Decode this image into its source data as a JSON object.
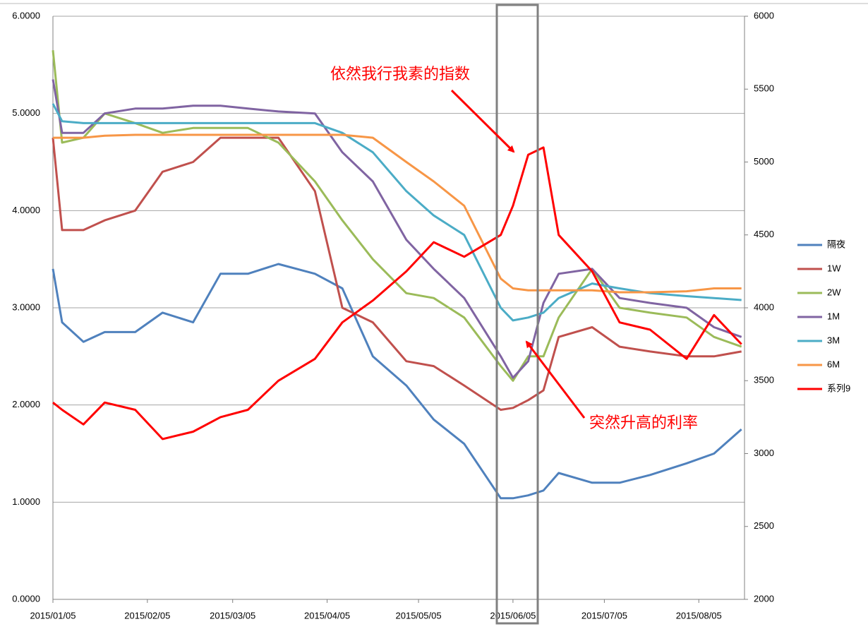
{
  "chart_data": {
    "type": "line",
    "x": [
      "2015/01/05",
      "2015/01/08",
      "2015/01/15",
      "2015/01/22",
      "2015/02/01",
      "2015/02/10",
      "2015/02/20",
      "2015/03/01",
      "2015/03/10",
      "2015/03/20",
      "2015/04/01",
      "2015/04/10",
      "2015/04/20",
      "2015/05/01",
      "2015/05/10",
      "2015/05/20",
      "2015/06/01",
      "2015/06/05",
      "2015/06/10",
      "2015/06/15",
      "2015/06/20",
      "2015/07/01",
      "2015/07/10",
      "2015/07/20",
      "2015/08/01",
      "2015/08/10",
      "2015/08/19"
    ],
    "xlim": [
      "2015/01/05",
      "2015/08/20"
    ],
    "xticks": [
      "2015/01/05",
      "2015/02/05",
      "2015/03/05",
      "2015/04/05",
      "2015/05/05",
      "2015/06/05",
      "2015/07/05",
      "2015/08/05"
    ],
    "ylim": [
      0,
      6
    ],
    "yticks": [
      {
        "value": 0,
        "label": "0.0000"
      },
      {
        "value": 1,
        "label": "1.0000"
      },
      {
        "value": 2,
        "label": "2.0000"
      },
      {
        "value": 3,
        "label": "3.0000"
      },
      {
        "value": 4,
        "label": "4.0000"
      },
      {
        "value": 5,
        "label": "5.0000"
      },
      {
        "value": 6,
        "label": "6.0000"
      }
    ],
    "y2lim": [
      2000,
      6000
    ],
    "y2ticks": [
      2000,
      2500,
      3000,
      3500,
      4000,
      4500,
      5000,
      5500,
      6000
    ],
    "grid": true,
    "legend": "right",
    "series": [
      {
        "name": "隔夜",
        "color": "#4f81bd",
        "values": [
          3.4,
          2.85,
          2.65,
          2.75,
          2.75,
          2.95,
          2.85,
          3.35,
          3.35,
          3.45,
          3.35,
          3.2,
          2.5,
          2.2,
          1.85,
          1.6,
          1.04,
          1.04,
          1.07,
          1.12,
          1.3,
          1.2,
          1.2,
          1.28,
          1.4,
          1.5,
          1.75
        ]
      },
      {
        "name": "1W",
        "color": "#c0504d",
        "values": [
          4.75,
          3.8,
          3.8,
          3.9,
          4.0,
          4.4,
          4.5,
          4.75,
          4.75,
          4.75,
          4.2,
          3.0,
          2.85,
          2.45,
          2.4,
          2.2,
          1.95,
          1.97,
          2.05,
          2.15,
          2.7,
          2.8,
          2.6,
          2.55,
          2.5,
          2.5,
          2.55
        ]
      },
      {
        "name": "2W",
        "color": "#9bbb59",
        "values": [
          5.65,
          4.7,
          4.75,
          5.0,
          4.9,
          4.8,
          4.85,
          4.85,
          4.85,
          4.7,
          4.3,
          3.9,
          3.5,
          3.15,
          3.1,
          2.9,
          2.4,
          2.25,
          2.5,
          2.5,
          2.9,
          3.4,
          3.0,
          2.95,
          2.9,
          2.7,
          2.6
        ]
      },
      {
        "name": "1M",
        "color": "#8064a2",
        "values": [
          5.35,
          4.8,
          4.8,
          5.0,
          5.05,
          5.05,
          5.08,
          5.08,
          5.05,
          5.02,
          5.0,
          4.6,
          4.3,
          3.7,
          3.4,
          3.1,
          2.5,
          2.28,
          2.45,
          3.05,
          3.35,
          3.4,
          3.1,
          3.05,
          3.0,
          2.8,
          2.7
        ]
      },
      {
        "name": "3M",
        "color": "#4bacc6",
        "values": [
          5.1,
          4.92,
          4.9,
          4.9,
          4.9,
          4.9,
          4.9,
          4.9,
          4.9,
          4.9,
          4.9,
          4.8,
          4.6,
          4.2,
          3.95,
          3.75,
          3.0,
          2.87,
          2.9,
          2.95,
          3.1,
          3.25,
          3.2,
          3.15,
          3.12,
          3.1,
          3.08
        ]
      },
      {
        "name": "6M",
        "color": "#f79646",
        "values": [
          4.75,
          4.75,
          4.75,
          4.77,
          4.78,
          4.78,
          4.78,
          4.78,
          4.78,
          4.78,
          4.78,
          4.78,
          4.75,
          4.5,
          4.3,
          4.05,
          3.3,
          3.2,
          3.18,
          3.18,
          3.18,
          3.18,
          3.16,
          3.16,
          3.17,
          3.2,
          3.2
        ]
      },
      {
        "name": "系列9",
        "color": "#ff0000",
        "axis": "y2",
        "values": [
          3350,
          3300,
          3200,
          3350,
          3300,
          3100,
          3150,
          3250,
          3300,
          3500,
          3650,
          3900,
          4050,
          4250,
          4450,
          4350,
          4500,
          4700,
          5050,
          5100,
          4500,
          4250,
          3900,
          3850,
          3650,
          3950,
          3750
        ]
      }
    ],
    "annotations": [
      "依然我行我素的指数",
      "突然升高的利率"
    ]
  }
}
